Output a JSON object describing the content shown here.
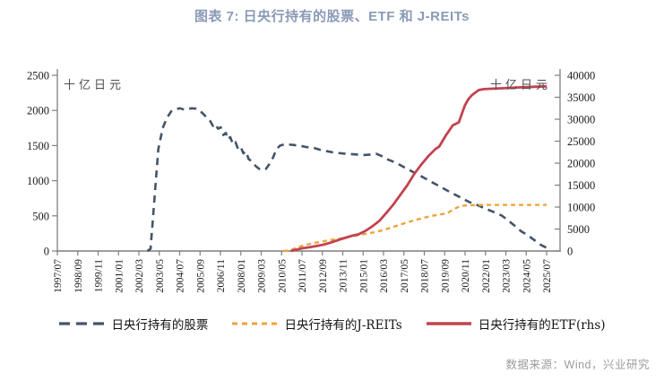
{
  "title": {
    "text": "图表 7: 日央行持有的股票、ETF 和 J-REITs"
  },
  "axis_units": {
    "left": "十亿日元",
    "right": "十亿日元"
  },
  "footer": {
    "source": "数据来源：Wind，兴业研究"
  },
  "colors": {
    "title": "#8A9AB6",
    "footer": "#9C9C9C",
    "axis_line": "#7F7F7F",
    "tick_text": "#1A1A1A",
    "unit_text": "#4D4D4D",
    "stocks": "#44546A",
    "jreits": "#EFA33D",
    "etf": "#C2434F"
  },
  "legend": {
    "items": [
      {
        "label": "日央行持有的股票"
      },
      {
        "label": "日央行持有的J-REITs"
      },
      {
        "label": "日央行持有的ETF(rhs)"
      }
    ]
  },
  "chart_data": {
    "type": "line",
    "title": "图表 7: 日央行持有的股票、ETF 和 J-REITs",
    "grid": false,
    "legend_position": "bottom",
    "x_unit": "year-month",
    "x_range_years": [
      1997.54,
      2025.58
    ],
    "x_axis": {
      "tick_labels": [
        "1997/07",
        "1998/09",
        "1999/11",
        "2001/01",
        "2002/03",
        "2003/05",
        "2004/07",
        "2005/09",
        "2006/11",
        "2008/01",
        "2009/03",
        "2010/05",
        "2011/07",
        "2012/09",
        "2013/11",
        "2015/01",
        "2016/03",
        "2017/05",
        "2018/07",
        "2019/09",
        "2020/11",
        "2022/01",
        "2023/03",
        "2024/05",
        "2025/07"
      ]
    },
    "y_axis_left": {
      "unit": "十亿日元",
      "min": 0,
      "max": 2500,
      "ticks": [
        0,
        500,
        1000,
        1500,
        2000,
        2500
      ]
    },
    "y_axis_right": {
      "unit": "十亿日元",
      "min": 0,
      "max": 40000,
      "ticks": [
        0,
        5000,
        10000,
        15000,
        20000,
        25000,
        30000,
        35000,
        40000
      ]
    },
    "series": [
      {
        "name": "日央行持有的股票",
        "axis": "left",
        "color": "#44546A",
        "dash": "8 6",
        "legend_dash": "12 7",
        "width": 2.6,
        "points": [
          [
            2002.7,
            0
          ],
          [
            2002.88,
            30
          ],
          [
            2003.0,
            400
          ],
          [
            2003.17,
            950
          ],
          [
            2003.33,
            1450
          ],
          [
            2003.58,
            1750
          ],
          [
            2003.83,
            1900
          ],
          [
            2004.08,
            1990
          ],
          [
            2004.33,
            2020
          ],
          [
            2004.58,
            2030
          ],
          [
            2004.83,
            2010
          ],
          [
            2005.0,
            2020
          ],
          [
            2005.25,
            2030
          ],
          [
            2005.5,
            2025
          ],
          [
            2005.7,
            2000
          ],
          [
            2005.9,
            1950
          ],
          [
            2006.1,
            1900
          ],
          [
            2006.3,
            1850
          ],
          [
            2006.45,
            1780
          ],
          [
            2006.6,
            1810
          ],
          [
            2006.75,
            1740
          ],
          [
            2006.9,
            1760
          ],
          [
            2007.05,
            1650
          ],
          [
            2007.2,
            1680
          ],
          [
            2007.3,
            1590
          ],
          [
            2007.45,
            1620
          ],
          [
            2007.6,
            1520
          ],
          [
            2007.75,
            1550
          ],
          [
            2007.9,
            1450
          ],
          [
            2008.05,
            1480
          ],
          [
            2008.2,
            1390
          ],
          [
            2008.35,
            1420
          ],
          [
            2008.5,
            1310
          ],
          [
            2008.7,
            1270
          ],
          [
            2008.9,
            1210
          ],
          [
            2009.1,
            1170
          ],
          [
            2009.3,
            1150
          ],
          [
            2009.5,
            1170
          ],
          [
            2009.7,
            1240
          ],
          [
            2009.9,
            1330
          ],
          [
            2010.1,
            1450
          ],
          [
            2010.3,
            1500
          ],
          [
            2010.6,
            1520
          ],
          [
            2011.0,
            1510
          ],
          [
            2011.4,
            1500
          ],
          [
            2011.8,
            1480
          ],
          [
            2012.2,
            1470
          ],
          [
            2012.6,
            1440
          ],
          [
            2013.0,
            1420
          ],
          [
            2013.4,
            1400
          ],
          [
            2013.8,
            1390
          ],
          [
            2014.2,
            1380
          ],
          [
            2014.6,
            1375
          ],
          [
            2015.0,
            1365
          ],
          [
            2015.4,
            1370
          ],
          [
            2015.8,
            1385
          ],
          [
            2016.1,
            1355
          ],
          [
            2016.5,
            1300
          ],
          [
            2017.0,
            1250
          ],
          [
            2017.5,
            1180
          ],
          [
            2018.0,
            1115
          ],
          [
            2018.5,
            1050
          ],
          [
            2019.0,
            980
          ],
          [
            2019.5,
            915
          ],
          [
            2020.0,
            845
          ],
          [
            2020.5,
            780
          ],
          [
            2021.0,
            715
          ],
          [
            2021.3,
            680
          ],
          [
            2021.7,
            645
          ],
          [
            2022.0,
            610
          ],
          [
            2022.5,
            560
          ],
          [
            2023.0,
            505
          ],
          [
            2023.4,
            430
          ],
          [
            2023.8,
            350
          ],
          [
            2024.1,
            285
          ],
          [
            2024.5,
            225
          ],
          [
            2024.9,
            150
          ],
          [
            2025.2,
            95
          ],
          [
            2025.58,
            45
          ]
        ]
      },
      {
        "name": "日央行持有的J-REITs",
        "axis": "left",
        "color": "#EFA33D",
        "dash": "5 4",
        "legend_dash": "6 5",
        "width": 2.4,
        "points": [
          [
            2010.5,
            0
          ],
          [
            2010.92,
            10
          ],
          [
            2011.2,
            45
          ],
          [
            2011.6,
            75
          ],
          [
            2012.0,
            100
          ],
          [
            2012.5,
            125
          ],
          [
            2013.0,
            148
          ],
          [
            2013.5,
            168
          ],
          [
            2014.0,
            190
          ],
          [
            2014.5,
            212
          ],
          [
            2015.0,
            235
          ],
          [
            2015.5,
            258
          ],
          [
            2016.0,
            285
          ],
          [
            2016.5,
            320
          ],
          [
            2017.0,
            360
          ],
          [
            2017.5,
            400
          ],
          [
            2018.0,
            438
          ],
          [
            2018.5,
            470
          ],
          [
            2019.0,
            500
          ],
          [
            2019.5,
            520
          ],
          [
            2019.9,
            540
          ],
          [
            2020.2,
            585
          ],
          [
            2020.5,
            625
          ],
          [
            2020.8,
            645
          ],
          [
            2021.2,
            652
          ],
          [
            2022.0,
            655
          ],
          [
            2023.0,
            656
          ],
          [
            2024.0,
            656
          ],
          [
            2025.0,
            655
          ],
          [
            2025.58,
            655
          ]
        ]
      },
      {
        "name": "日央行持有的ETF(rhs)",
        "axis": "right",
        "color": "#C2434F",
        "dash": null,
        "legend_dash": null,
        "width": 2.8,
        "points": [
          [
            2010.92,
            0
          ],
          [
            2011.2,
            280
          ],
          [
            2011.6,
            630
          ],
          [
            2012.0,
            860
          ],
          [
            2012.4,
            1150
          ],
          [
            2012.8,
            1450
          ],
          [
            2013.2,
            1900
          ],
          [
            2013.6,
            2450
          ],
          [
            2014.0,
            2950
          ],
          [
            2014.4,
            3450
          ],
          [
            2014.8,
            3800
          ],
          [
            2015.2,
            4600
          ],
          [
            2015.6,
            5650
          ],
          [
            2016.0,
            6900
          ],
          [
            2016.4,
            8700
          ],
          [
            2016.8,
            10600
          ],
          [
            2017.2,
            12800
          ],
          [
            2017.6,
            15000
          ],
          [
            2018.0,
            17600
          ],
          [
            2018.4,
            19700
          ],
          [
            2018.8,
            21600
          ],
          [
            2019.2,
            23200
          ],
          [
            2019.43,
            23800
          ],
          [
            2019.8,
            26300
          ],
          [
            2020.0,
            27400
          ],
          [
            2020.2,
            28600
          ],
          [
            2020.35,
            28900
          ],
          [
            2020.55,
            29300
          ],
          [
            2020.7,
            31000
          ],
          [
            2020.9,
            33200
          ],
          [
            2021.1,
            34600
          ],
          [
            2021.3,
            35500
          ],
          [
            2021.5,
            36100
          ],
          [
            2021.7,
            36650
          ],
          [
            2022.0,
            36850
          ],
          [
            2022.5,
            36950
          ],
          [
            2023.0,
            37050
          ],
          [
            2023.5,
            37150
          ],
          [
            2024.0,
            37250
          ],
          [
            2024.5,
            37300
          ],
          [
            2025.0,
            37400
          ],
          [
            2025.58,
            37500
          ]
        ]
      }
    ]
  }
}
